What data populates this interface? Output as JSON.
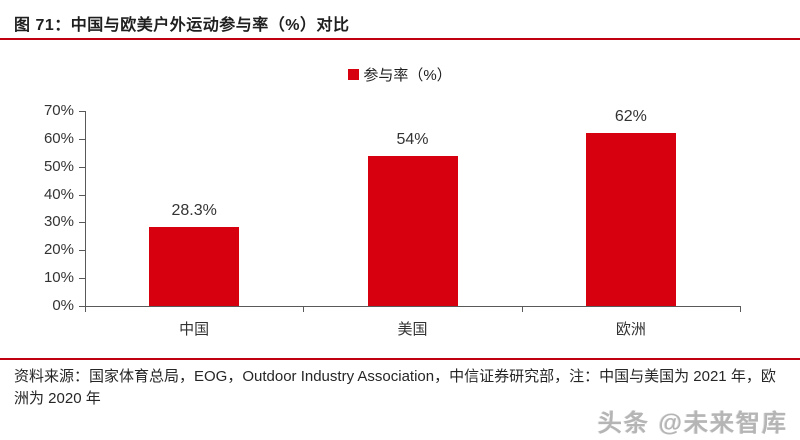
{
  "figure": {
    "title": "图 71：中国与欧美户外运动参与率（%）对比",
    "source_note": "资料来源：国家体育总局，EOG，Outdoor Industry Association，中信证券研究部，注：中国与美国为 2021 年，欧洲为 2020 年",
    "watermark": "头条 @未来智库"
  },
  "colors": {
    "bar": "#d6000f",
    "accent_line": "#c00011",
    "axis": "#595959",
    "text": "#333333"
  },
  "chart_data": {
    "type": "bar",
    "title": "中国与欧美户外运动参与率（%）对比",
    "legend": [
      "参与率（%）"
    ],
    "legend_position": "top",
    "categories": [
      "中国",
      "美国",
      "欧洲"
    ],
    "values": [
      28.3,
      54,
      62
    ],
    "value_labels": [
      "28.3%",
      "54%",
      "62%"
    ],
    "xlabel": "",
    "ylabel": "",
    "ylim": [
      0,
      70
    ],
    "ytick_step": 10,
    "ytick_labels": [
      "0%",
      "10%",
      "20%",
      "30%",
      "40%",
      "50%",
      "60%",
      "70%"
    ],
    "grid": false
  }
}
